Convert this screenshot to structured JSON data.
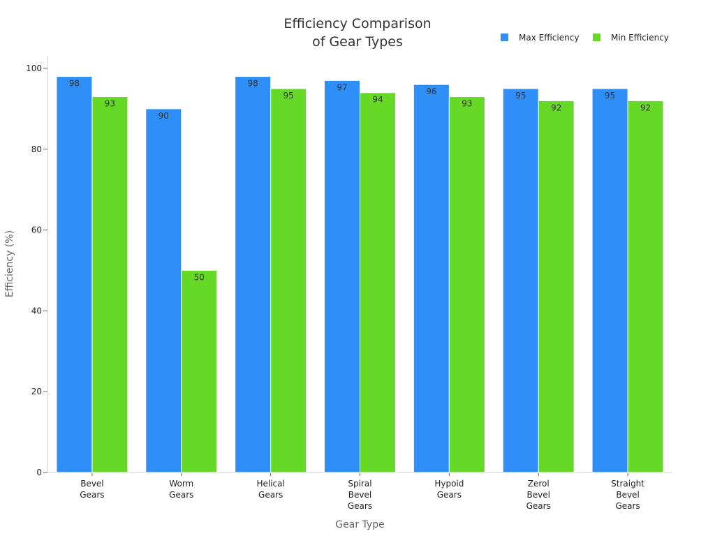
{
  "chart_data": {
    "type": "bar",
    "title_lines": [
      "Efficiency Comparison",
      "of Gear Types"
    ],
    "xlabel": "Gear Type",
    "ylabel": "Efficiency (%)",
    "ylim": [
      0,
      100
    ],
    "yticks": [
      0,
      20,
      40,
      60,
      80,
      100
    ],
    "legend_position": "top-right",
    "grid": false,
    "categories": [
      [
        "Bevel",
        "Gears"
      ],
      [
        "Worm",
        "Gears"
      ],
      [
        "Helical",
        "Gears"
      ],
      [
        "Spiral",
        "Bevel",
        "Gears"
      ],
      [
        "Hypoid",
        "Gears"
      ],
      [
        "Zerol",
        "Bevel",
        "Gears"
      ],
      [
        "Straight",
        "Bevel",
        "Gears"
      ]
    ],
    "series": [
      {
        "name": "Max Efficiency",
        "color": "#2f8ff8",
        "values": [
          98,
          90,
          98,
          97,
          96,
          95,
          95
        ]
      },
      {
        "name": "Min Efficiency",
        "color": "#66d926",
        "values": [
          93,
          50,
          95,
          94,
          93,
          92,
          92
        ]
      }
    ]
  }
}
